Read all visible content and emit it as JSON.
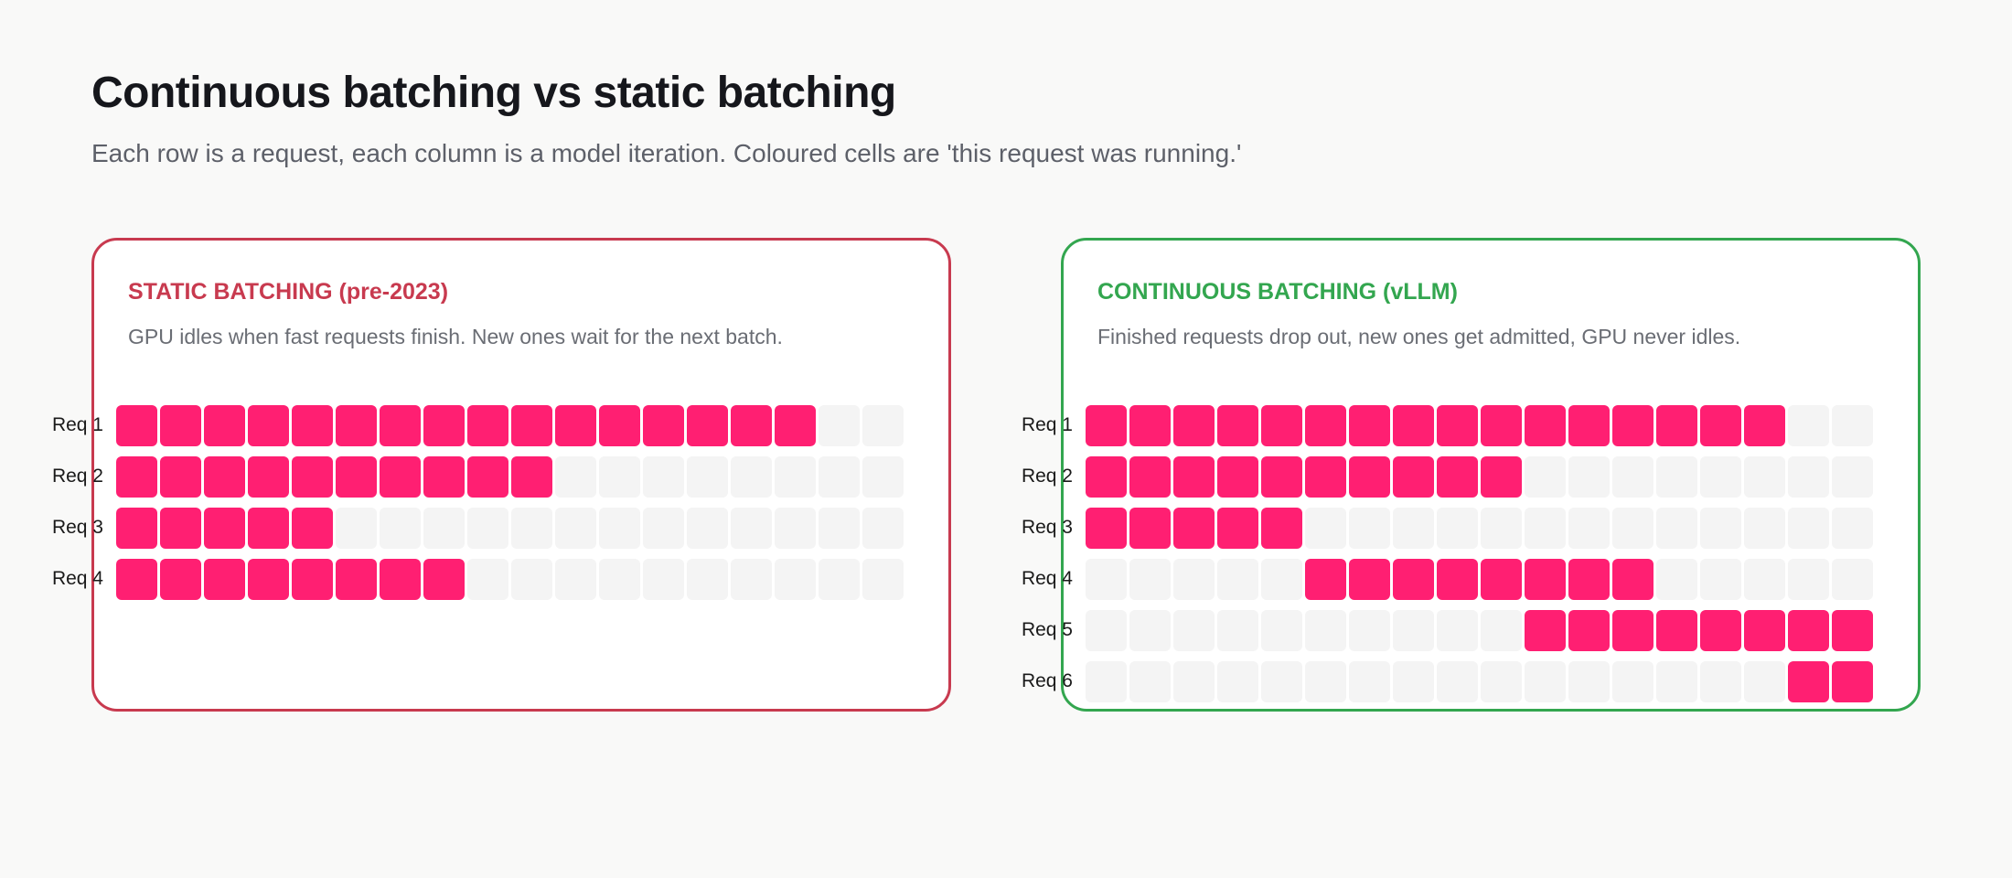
{
  "title": "Continuous batching vs static batching",
  "subtitle": "Each row is a request, each column is a model iteration. Coloured cells are 'this request was running.'",
  "colors": {
    "running": "#ff1f72",
    "idle": "#f4f4f4",
    "static_accent": "#c83a4f",
    "continuous_accent": "#33a64f"
  },
  "chart_data": [
    {
      "type": "heatmap",
      "title": "STATIC BATCHING (pre-2023)",
      "subtitle": "GPU idles when fast requests finish. New ones wait for the next batch.",
      "columns": 18,
      "rows": [
        {
          "label": "Req 1",
          "start": 0,
          "length": 16
        },
        {
          "label": "Req 2",
          "start": 0,
          "length": 10
        },
        {
          "label": "Req 3",
          "start": 0,
          "length": 5
        },
        {
          "label": "Req 4",
          "start": 0,
          "length": 8
        }
      ]
    },
    {
      "type": "heatmap",
      "title": "CONTINUOUS BATCHING (vLLM)",
      "subtitle": "Finished requests drop out, new ones get admitted, GPU never idles.",
      "columns": 18,
      "rows": [
        {
          "label": "Req 1",
          "start": 0,
          "length": 16
        },
        {
          "label": "Req 2",
          "start": 0,
          "length": 10
        },
        {
          "label": "Req 3",
          "start": 0,
          "length": 5
        },
        {
          "label": "Req 4",
          "start": 5,
          "length": 8
        },
        {
          "label": "Req 5",
          "start": 10,
          "length": 8
        },
        {
          "label": "Req 6",
          "start": 16,
          "length": 2
        }
      ]
    }
  ]
}
